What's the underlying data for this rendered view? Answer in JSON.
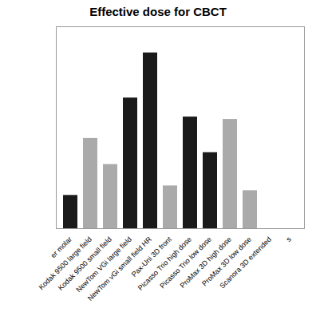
{
  "chart_data": {
    "type": "bar",
    "title": "Effective dose for CBCT",
    "categories": [
      "er molar",
      "Kodak 9500 large field",
      "Kodak 9500 small field",
      "NewTom VGi large field",
      "NewTom vGi small field HR",
      "Pax-Uni 3D front",
      "Picasso Trio high dose",
      "Picasso Trio low dose",
      "ProMax 3D high dose",
      "ProMax 3D low dose",
      "Scanora 3D extended",
      "s"
    ],
    "series": [
      {
        "color": "#1a1a1a",
        "values": [
          14,
          0,
          0,
          55,
          74,
          0,
          47,
          32,
          0,
          0,
          0,
          0
        ]
      },
      {
        "color": "#aaaaaa",
        "values": [
          0,
          38,
          27,
          0,
          0,
          18,
          0,
          0,
          46,
          16,
          0,
          0
        ]
      }
    ],
    "ylim": [
      0,
      85
    ],
    "yticks": [],
    "grid": false,
    "tick_labels": "x"
  }
}
